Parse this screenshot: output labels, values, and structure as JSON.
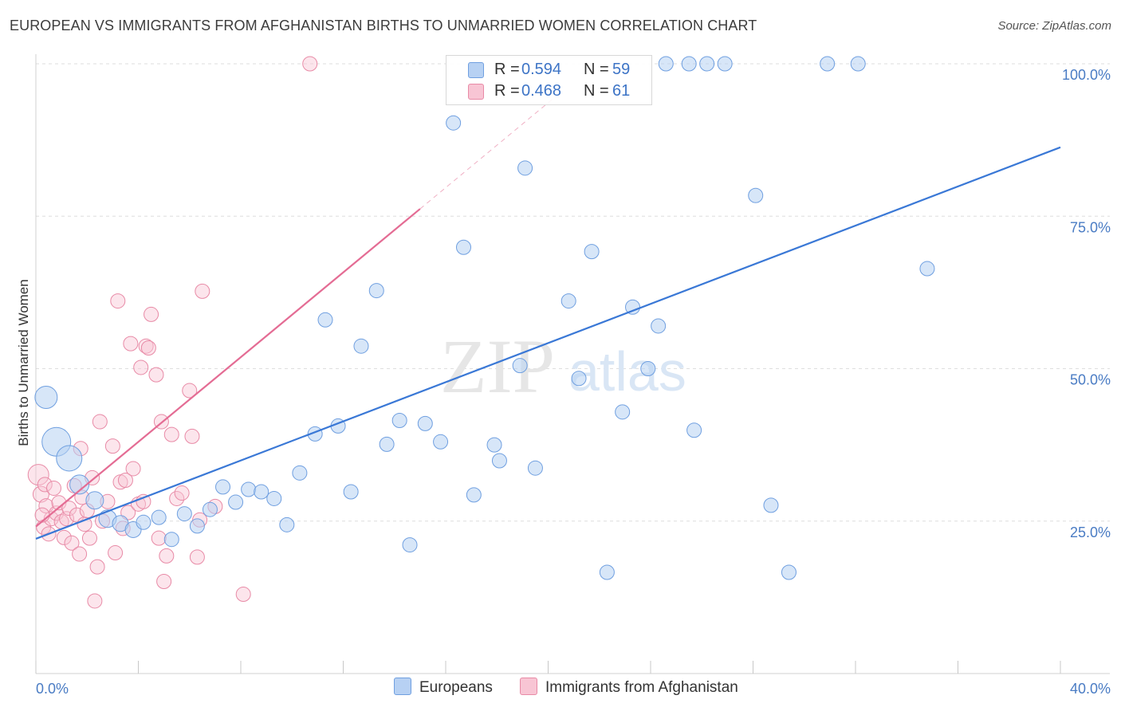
{
  "title": "EUROPEAN VS IMMIGRANTS FROM AFGHANISTAN BIRTHS TO UNMARRIED WOMEN CORRELATION CHART",
  "source": "Source: ZipAtlas.com",
  "watermark": {
    "zip": "ZIP",
    "atlas": "atlas"
  },
  "legend": {
    "r_label": "R = ",
    "n_label": "N = ",
    "series": [
      {
        "name": "Europeans",
        "r": "0.594",
        "n": "59",
        "fill": "#b7d1f3",
        "stroke": "#6f9fe0"
      },
      {
        "name": "Immigrants from Afghanistan",
        "r": "0.468",
        "n": "61",
        "fill": "#f8c5d4",
        "stroke": "#e88aa6"
      }
    ]
  },
  "chart_data": {
    "type": "scatter",
    "title": "EUROPEAN VS IMMIGRANTS FROM AFGHANISTAN BIRTHS TO UNMARRIED WOMEN CORRELATION CHART",
    "xlabel": "",
    "ylabel": "Births to Unmarried Women",
    "xlim": [
      0,
      40
    ],
    "ylim": [
      0,
      100
    ],
    "x_tick_labels": [
      "0.0%",
      "40.0%"
    ],
    "y_ticks": [
      25,
      50,
      75,
      100
    ],
    "y_tick_labels": [
      "25.0%",
      "50.0%",
      "75.0%",
      "100.0%"
    ],
    "grid": true,
    "series": [
      {
        "name": "Europeans",
        "color": "#3a78d6",
        "trend": {
          "x": [
            0,
            40
          ],
          "y": [
            22.1,
            86.3
          ]
        },
        "points": [
          [
            0.4,
            45.3,
            14
          ],
          [
            0.8,
            38.0,
            18
          ],
          [
            1.3,
            35.3,
            16
          ],
          [
            1.7,
            31.0,
            12
          ],
          [
            2.3,
            28.4,
            11
          ],
          [
            2.8,
            25.4,
            11
          ],
          [
            3.3,
            24.6,
            10
          ],
          [
            3.8,
            23.6,
            10
          ],
          [
            4.2,
            24.8,
            9
          ],
          [
            4.8,
            25.6,
            9
          ],
          [
            5.3,
            22.0,
            9
          ],
          [
            5.8,
            26.2,
            9
          ],
          [
            6.3,
            24.2,
            9
          ],
          [
            6.8,
            26.9,
            9
          ],
          [
            7.3,
            30.6,
            9
          ],
          [
            7.8,
            28.1,
            9
          ],
          [
            8.3,
            30.2,
            9
          ],
          [
            8.8,
            29.8,
            9
          ],
          [
            9.3,
            28.7,
            9
          ],
          [
            9.8,
            24.4,
            9
          ],
          [
            10.3,
            32.9,
            9
          ],
          [
            10.9,
            39.3,
            9
          ],
          [
            11.3,
            58.0,
            9
          ],
          [
            11.8,
            40.6,
            9
          ],
          [
            12.3,
            29.8,
            9
          ],
          [
            12.7,
            53.7,
            9
          ],
          [
            13.3,
            62.8,
            9
          ],
          [
            13.7,
            37.6,
            9
          ],
          [
            14.2,
            41.5,
            9
          ],
          [
            14.6,
            21.1,
            9
          ],
          [
            15.2,
            41.0,
            9
          ],
          [
            15.8,
            38.0,
            9
          ],
          [
            16.3,
            90.3,
            9
          ],
          [
            16.7,
            69.9,
            9
          ],
          [
            17.1,
            29.3,
            9
          ],
          [
            17.9,
            37.5,
            9
          ],
          [
            18.1,
            34.9,
            9
          ],
          [
            18.9,
            50.5,
            9
          ],
          [
            19.1,
            82.9,
            9
          ],
          [
            19.5,
            33.7,
            9
          ],
          [
            20.8,
            61.1,
            9
          ],
          [
            21.2,
            48.4,
            9
          ],
          [
            21.7,
            69.2,
            9
          ],
          [
            22.3,
            16.6,
            9
          ],
          [
            22.9,
            42.9,
            9
          ],
          [
            23.3,
            60.1,
            9
          ],
          [
            23.9,
            50.0,
            9
          ],
          [
            24.3,
            57.0,
            9
          ],
          [
            25.5,
            100.0,
            9
          ],
          [
            25.7,
            39.9,
            9
          ],
          [
            26.2,
            100.0,
            9
          ],
          [
            26.9,
            100.0,
            9
          ],
          [
            28.1,
            78.4,
            9
          ],
          [
            28.7,
            27.6,
            9
          ],
          [
            29.4,
            16.6,
            9
          ],
          [
            30.9,
            100.0,
            9
          ],
          [
            32.1,
            100.0,
            9
          ],
          [
            34.8,
            66.4,
            9
          ],
          [
            24.6,
            100.0,
            9
          ]
        ]
      },
      {
        "name": "Immigrants from Afghanistan",
        "color": "#e46c94",
        "trend": {
          "x": [
            0,
            15
          ],
          "y": [
            24.1,
            76.2
          ]
        },
        "trend_dashed": {
          "x": [
            15,
            20.4
          ],
          "y": [
            76.2,
            95.0
          ]
        },
        "points": [
          [
            0.1,
            32.6,
            13
          ],
          [
            0.2,
            29.4,
            10
          ],
          [
            0.3,
            24.0,
            9
          ],
          [
            0.35,
            31.0,
            9
          ],
          [
            0.4,
            27.5,
            9
          ],
          [
            0.5,
            22.9,
            9
          ],
          [
            0.6,
            25.4,
            9
          ],
          [
            0.7,
            30.4,
            9
          ],
          [
            0.8,
            26.3,
            9
          ],
          [
            0.9,
            28.0,
            9
          ],
          [
            1.0,
            24.9,
            9
          ],
          [
            1.1,
            22.3,
            9
          ],
          [
            1.2,
            25.4,
            9
          ],
          [
            1.3,
            27.1,
            9
          ],
          [
            1.4,
            21.4,
            9
          ],
          [
            1.5,
            30.8,
            9
          ],
          [
            1.6,
            26.0,
            9
          ],
          [
            1.7,
            19.6,
            9
          ],
          [
            1.8,
            28.9,
            9
          ],
          [
            1.9,
            24.5,
            9
          ],
          [
            2.0,
            26.7,
            9
          ],
          [
            2.1,
            22.2,
            9
          ],
          [
            2.2,
            32.1,
            9
          ],
          [
            2.3,
            11.9,
            9
          ],
          [
            2.5,
            41.3,
            9
          ],
          [
            2.6,
            25.0,
            9
          ],
          [
            2.8,
            28.2,
            9
          ],
          [
            3.0,
            37.3,
            9
          ],
          [
            3.1,
            19.8,
            9
          ],
          [
            3.2,
            61.1,
            9
          ],
          [
            3.3,
            31.4,
            9
          ],
          [
            3.5,
            31.7,
            9
          ],
          [
            3.6,
            26.4,
            9
          ],
          [
            3.7,
            54.1,
            9
          ],
          [
            3.8,
            33.6,
            9
          ],
          [
            4.0,
            27.8,
            9
          ],
          [
            4.1,
            50.2,
            9
          ],
          [
            4.2,
            28.2,
            9
          ],
          [
            4.3,
            53.7,
            9
          ],
          [
            4.4,
            53.4,
            9
          ],
          [
            4.5,
            58.9,
            9
          ],
          [
            4.7,
            49.0,
            9
          ],
          [
            4.8,
            22.2,
            9
          ],
          [
            4.9,
            41.3,
            9
          ],
          [
            5.0,
            15.1,
            9
          ],
          [
            5.1,
            19.3,
            9
          ],
          [
            5.3,
            39.2,
            9
          ],
          [
            5.5,
            28.7,
            9
          ],
          [
            5.7,
            29.6,
            9
          ],
          [
            6.0,
            46.4,
            9
          ],
          [
            6.1,
            38.9,
            9
          ],
          [
            6.3,
            19.1,
            9
          ],
          [
            6.4,
            25.2,
            9
          ],
          [
            6.5,
            62.7,
            9
          ],
          [
            7.0,
            27.4,
            9
          ],
          [
            8.1,
            13.0,
            9
          ],
          [
            10.7,
            100.0,
            9
          ],
          [
            0.25,
            26.0,
            9
          ],
          [
            1.75,
            36.9,
            9
          ],
          [
            2.4,
            17.5,
            9
          ],
          [
            3.4,
            23.8,
            9
          ]
        ]
      }
    ]
  }
}
